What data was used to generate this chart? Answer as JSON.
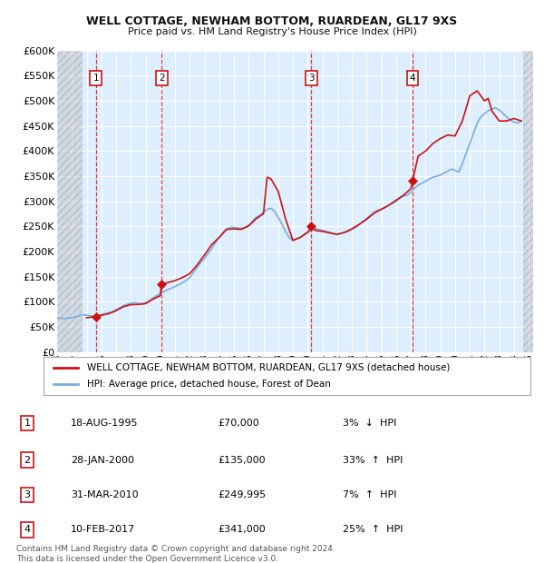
{
  "title1": "WELL COTTAGE, NEWHAM BOTTOM, RUARDEAN, GL17 9XS",
  "title2": "Price paid vs. HM Land Registry's House Price Index (HPI)",
  "ylim": [
    0,
    600000
  ],
  "yticks": [
    0,
    50000,
    100000,
    150000,
    200000,
    250000,
    300000,
    350000,
    400000,
    450000,
    500000,
    550000,
    600000
  ],
  "ytick_labels": [
    "£0",
    "£50K",
    "£100K",
    "£150K",
    "£200K",
    "£250K",
    "£300K",
    "£350K",
    "£400K",
    "£450K",
    "£500K",
    "£550K",
    "£600K"
  ],
  "xlim_start": 1993.0,
  "xlim_end": 2025.3,
  "bg_color": "#ddeeff",
  "grid_color": "#ffffff",
  "transactions": [
    {
      "num": 1,
      "date": "18-AUG-1995",
      "year": 1995.63,
      "price": 70000,
      "pct": "3%",
      "dir": "↓"
    },
    {
      "num": 2,
      "date": "28-JAN-2000",
      "year": 2000.08,
      "price": 135000,
      "pct": "33%",
      "dir": "↑"
    },
    {
      "num": 3,
      "date": "31-MAR-2010",
      "year": 2010.25,
      "price": 249995,
      "pct": "7%",
      "dir": "↑"
    },
    {
      "num": 4,
      "date": "10-FEB-2017",
      "year": 2017.12,
      "price": 341000,
      "pct": "25%",
      "dir": "↑"
    }
  ],
  "red_line_color": "#cc1111",
  "blue_line_color": "#7aaddd",
  "marker_color": "#cc1111",
  "vline_color": "#dd2222",
  "legend1": "WELL COTTAGE, NEWHAM BOTTOM, RUARDEAN, GL17 9XS (detached house)",
  "legend2": "HPI: Average price, detached house, Forest of Dean",
  "footnote1": "Contains HM Land Registry data © Crown copyright and database right 2024.",
  "footnote2": "This data is licensed under the Open Government Licence v3.0.",
  "hpi_data_years": [
    1993.0,
    1993.25,
    1993.5,
    1993.75,
    1994.0,
    1994.25,
    1994.5,
    1994.75,
    1995.0,
    1995.25,
    1995.5,
    1995.75,
    1996.0,
    1996.25,
    1996.5,
    1996.75,
    1997.0,
    1997.25,
    1997.5,
    1997.75,
    1998.0,
    1998.25,
    1998.5,
    1998.75,
    1999.0,
    1999.25,
    1999.5,
    1999.75,
    2000.0,
    2000.25,
    2000.5,
    2000.75,
    2001.0,
    2001.25,
    2001.5,
    2001.75,
    2002.0,
    2002.25,
    2002.5,
    2002.75,
    2003.0,
    2003.25,
    2003.5,
    2003.75,
    2004.0,
    2004.25,
    2004.5,
    2004.75,
    2005.0,
    2005.25,
    2005.5,
    2005.75,
    2006.0,
    2006.25,
    2006.5,
    2006.75,
    2007.0,
    2007.25,
    2007.5,
    2007.75,
    2008.0,
    2008.25,
    2008.5,
    2008.75,
    2009.0,
    2009.25,
    2009.5,
    2009.75,
    2010.0,
    2010.25,
    2010.5,
    2010.75,
    2011.0,
    2011.25,
    2011.5,
    2011.75,
    2012.0,
    2012.25,
    2012.5,
    2012.75,
    2013.0,
    2013.25,
    2013.5,
    2013.75,
    2014.0,
    2014.25,
    2014.5,
    2014.75,
    2015.0,
    2015.25,
    2015.5,
    2015.75,
    2016.0,
    2016.25,
    2016.5,
    2016.75,
    2017.0,
    2017.25,
    2017.5,
    2017.75,
    2018.0,
    2018.25,
    2018.5,
    2018.75,
    2019.0,
    2019.25,
    2019.5,
    2019.75,
    2020.0,
    2020.25,
    2020.5,
    2020.75,
    2021.0,
    2021.25,
    2021.5,
    2021.75,
    2022.0,
    2022.25,
    2022.5,
    2022.75,
    2023.0,
    2023.25,
    2023.5,
    2023.75,
    2024.0,
    2024.25,
    2024.5
  ],
  "hpi_data_values": [
    68000,
    67000,
    66500,
    67000,
    68000,
    70000,
    72000,
    74000,
    73000,
    72000,
    71000,
    72000,
    74000,
    76000,
    78000,
    80000,
    84000,
    88000,
    92000,
    95000,
    97000,
    98000,
    97000,
    96000,
    98000,
    102000,
    107000,
    112000,
    116000,
    120000,
    124000,
    127000,
    130000,
    134000,
    138000,
    142000,
    148000,
    158000,
    168000,
    178000,
    186000,
    196000,
    206000,
    218000,
    228000,
    238000,
    245000,
    248000,
    248000,
    247000,
    246000,
    248000,
    252000,
    260000,
    268000,
    272000,
    278000,
    284000,
    286000,
    280000,
    268000,
    255000,
    240000,
    228000,
    222000,
    225000,
    228000,
    234000,
    238000,
    242000,
    246000,
    244000,
    242000,
    240000,
    238000,
    236000,
    234000,
    236000,
    238000,
    240000,
    244000,
    248000,
    254000,
    260000,
    266000,
    272000,
    278000,
    282000,
    284000,
    287000,
    292000,
    296000,
    300000,
    306000,
    310000,
    312000,
    318000,
    326000,
    332000,
    336000,
    340000,
    344000,
    348000,
    350000,
    352000,
    356000,
    360000,
    364000,
    362000,
    358000,
    375000,
    395000,
    415000,
    435000,
    455000,
    468000,
    475000,
    480000,
    484000,
    486000,
    482000,
    475000,
    468000,
    462000,
    458000,
    456000,
    460000
  ],
  "price_data_years": [
    1995.0,
    1995.25,
    1995.5,
    1995.63,
    1995.75,
    1996.0,
    1996.5,
    1997.0,
    1997.5,
    1998.0,
    1998.5,
    1999.0,
    1999.5,
    2000.0,
    2000.08,
    2000.5,
    2001.0,
    2001.5,
    2002.0,
    2002.5,
    2003.0,
    2003.5,
    2004.0,
    2004.5,
    2005.0,
    2005.5,
    2006.0,
    2006.5,
    2007.0,
    2007.25,
    2007.5,
    2008.0,
    2008.5,
    2009.0,
    2009.5,
    2010.0,
    2010.25,
    2010.5,
    2011.0,
    2011.5,
    2012.0,
    2012.5,
    2013.0,
    2013.5,
    2014.0,
    2014.5,
    2015.0,
    2015.5,
    2016.0,
    2016.5,
    2017.0,
    2017.12,
    2017.5,
    2018.0,
    2018.5,
    2019.0,
    2019.5,
    2020.0,
    2020.5,
    2021.0,
    2021.5,
    2022.0,
    2022.25,
    2022.5,
    2023.0,
    2023.5,
    2024.0,
    2024.5
  ],
  "price_data_values": [
    68000,
    69000,
    69500,
    70000,
    71500,
    73000,
    76000,
    82000,
    90000,
    94000,
    94500,
    96000,
    105000,
    112000,
    135000,
    138000,
    142000,
    148000,
    156000,
    173000,
    193000,
    214000,
    228000,
    244000,
    245000,
    244000,
    251000,
    265000,
    275000,
    348000,
    345000,
    320000,
    265000,
    222000,
    228000,
    238000,
    249995,
    242000,
    240000,
    237000,
    234000,
    238000,
    245000,
    254000,
    264000,
    276000,
    284000,
    292000,
    302000,
    312000,
    325000,
    341000,
    390000,
    400000,
    415000,
    425000,
    432000,
    430000,
    460000,
    510000,
    520000,
    500000,
    505000,
    480000,
    460000,
    460000,
    465000,
    460000
  ]
}
